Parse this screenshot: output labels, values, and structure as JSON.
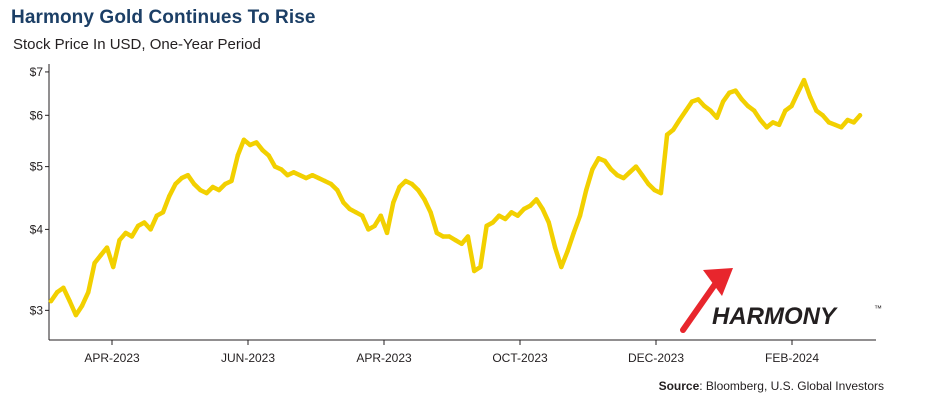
{
  "chart_data": {
    "type": "line",
    "title": "Harmony Gold Continues To Rise",
    "subtitle": "Stock Price In USD, One-Year Period",
    "xlabel": "",
    "ylabel": "",
    "y_scale": "log",
    "ylim": [
      2.7,
      7.2
    ],
    "y_ticks": [
      3,
      4,
      5,
      6,
      7
    ],
    "y_tick_labels": [
      "$3",
      "$4",
      "$5",
      "$6",
      "$7"
    ],
    "x_tick_labels": [
      "APR-2023",
      "JUN-2023",
      "APR-2023",
      "OCT-2023",
      "DEC-2023",
      "FEB-2024"
    ],
    "grid": false,
    "line_color": "#f2d000",
    "series": [
      {
        "values": [
          3.1,
          3.2,
          3.25,
          3.1,
          2.95,
          3.05,
          3.2,
          3.55,
          3.65,
          3.75,
          3.5,
          3.85,
          3.95,
          3.9,
          4.05,
          4.1,
          4.0,
          4.2,
          4.25,
          4.5,
          4.7,
          4.8,
          4.85,
          4.7,
          4.6,
          4.55,
          4.65,
          4.6,
          4.7,
          4.75,
          5.2,
          5.5,
          5.4,
          5.45,
          5.3,
          5.2,
          5.0,
          4.95,
          4.85,
          4.9,
          4.85,
          4.8,
          4.85,
          4.8,
          4.75,
          4.7,
          4.6,
          4.4,
          4.3,
          4.25,
          4.2,
          4.0,
          4.05,
          4.2,
          3.95,
          4.4,
          4.65,
          4.75,
          4.7,
          4.6,
          4.45,
          4.25,
          3.95,
          3.9,
          3.9,
          3.85,
          3.8,
          3.9,
          3.45,
          3.5,
          4.05,
          4.1,
          4.2,
          4.15,
          4.25,
          4.2,
          4.3,
          4.35,
          4.45,
          4.3,
          4.1,
          3.75,
          3.5,
          3.7,
          3.95,
          4.2,
          4.6,
          4.95,
          5.15,
          5.1,
          4.95,
          4.85,
          4.8,
          4.9,
          5.0,
          4.85,
          4.7,
          4.6,
          4.55,
          5.6,
          5.7,
          5.9,
          6.1,
          6.3,
          6.35,
          6.2,
          6.1,
          5.95,
          6.3,
          6.5,
          6.55,
          6.35,
          6.2,
          6.1,
          5.9,
          5.75,
          5.85,
          5.8,
          6.1,
          6.2,
          6.5,
          6.8,
          6.4,
          6.1,
          6.0,
          5.85,
          5.8,
          5.75,
          5.9,
          5.85,
          6.0
        ]
      }
    ]
  },
  "source": {
    "label": "Source",
    "text": ": Bloomberg, U.S. Global Investors"
  },
  "logo": {
    "text": "HARMONY",
    "trademark": "™",
    "arrow_color": "#e8262d"
  }
}
